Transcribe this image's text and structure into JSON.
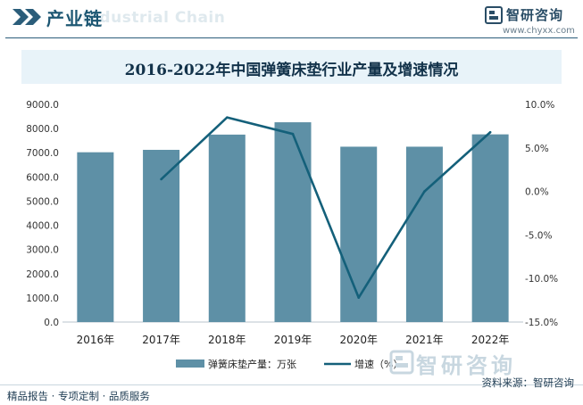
{
  "header": {
    "title": "产业链",
    "ghost_text": "Industrial Chain",
    "brand_name": "智研咨询",
    "brand_url": "www.chyxx.com"
  },
  "chart_data": {
    "type": "bar",
    "title": "2016-2022年中国弹簧床垫行业产量及增速情况",
    "categories": [
      "2016年",
      "2017年",
      "2018年",
      "2019年",
      "2020年",
      "2021年",
      "2022年"
    ],
    "series": [
      {
        "name": "弹簧床垫产量：万张",
        "type": "bar",
        "axis": "left",
        "color": "#5e90a6",
        "values": [
          7020,
          7120,
          7750,
          8260,
          7250,
          7250,
          7760
        ]
      },
      {
        "name": "增速（%）",
        "type": "line",
        "axis": "right",
        "color": "#14607a",
        "values": [
          null,
          1.4,
          8.5,
          6.6,
          -12.2,
          0.0,
          6.8
        ]
      }
    ],
    "left_axis": {
      "ylim": [
        0,
        9000
      ],
      "ticks": [
        "0.0",
        "1000.0",
        "2000.0",
        "3000.0",
        "4000.0",
        "5000.0",
        "6000.0",
        "7000.0",
        "8000.0",
        "9000.0"
      ]
    },
    "right_axis": {
      "ylim": [
        -15,
        10
      ],
      "ticks": [
        "-15.0%",
        "-10.0%",
        "-5.0%",
        "0.0%",
        "5.0%",
        "10.0%"
      ]
    },
    "legend_position": "bottom-center"
  },
  "footer": {
    "left": "精品报告 · 专项定制 · 品质服务",
    "source": "资料来源：智研咨询"
  },
  "watermark": {
    "text": "智研咨询"
  },
  "colors": {
    "header_text": "#1d5773",
    "bar": "#5e90a6",
    "line": "#14607a",
    "title_bg": "#e8f3f9"
  }
}
